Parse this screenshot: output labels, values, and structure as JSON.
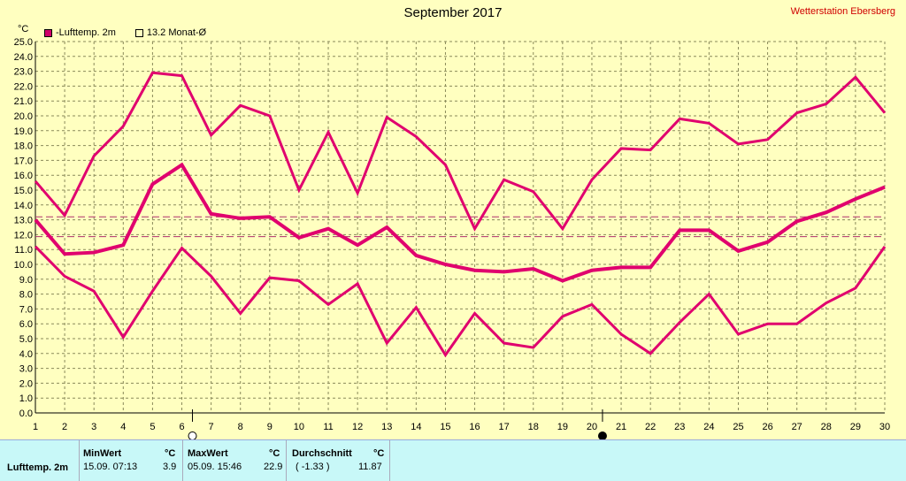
{
  "title": "September 2017",
  "station": "Wetterstation Ebersberg",
  "legend": {
    "series_label": "-Lufttemp. 2m",
    "avg_label": "13.2 Monat-Ø"
  },
  "chart_data": {
    "type": "line",
    "ylabel": "°C",
    "ylim": [
      0,
      25
    ],
    "ytick_step": 1,
    "x": [
      1,
      2,
      3,
      4,
      5,
      6,
      7,
      8,
      9,
      10,
      11,
      12,
      13,
      14,
      15,
      16,
      17,
      18,
      19,
      20,
      21,
      22,
      23,
      24,
      25,
      26,
      27,
      28,
      29,
      30
    ],
    "grid": true,
    "series": [
      {
        "key": "max",
        "values": [
          15.6,
          13.3,
          17.3,
          19.3,
          22.9,
          22.7,
          18.7,
          20.7,
          20.0,
          15.0,
          18.9,
          14.8,
          19.9,
          18.6,
          16.7,
          12.4,
          15.7,
          14.9,
          12.4,
          15.7,
          17.8,
          17.7,
          19.8,
          19.5,
          18.1,
          18.4,
          20.2,
          20.8,
          22.6,
          20.2
        ]
      },
      {
        "key": "avg",
        "values": [
          13.0,
          10.7,
          10.8,
          11.3,
          15.4,
          16.7,
          13.4,
          13.1,
          13.2,
          11.8,
          12.4,
          11.3,
          12.5,
          10.6,
          10.0,
          9.6,
          9.5,
          9.7,
          8.9,
          9.6,
          9.8,
          9.8,
          12.3,
          12.3,
          10.9,
          11.5,
          12.9,
          13.5,
          14.4,
          15.2
        ]
      },
      {
        "key": "min",
        "values": [
          11.2,
          9.2,
          8.2,
          5.1,
          8.2,
          11.1,
          9.2,
          6.7,
          9.1,
          8.9,
          7.3,
          8.7,
          4.7,
          7.1,
          3.9,
          6.7,
          4.7,
          4.4,
          6.5,
          7.3,
          5.3,
          4.0,
          6.1,
          8.0,
          5.3,
          6.0,
          6.0,
          7.4,
          8.4,
          11.2
        ]
      }
    ],
    "reference_lines": [
      13.2,
      11.87
    ],
    "moon_phases": [
      {
        "day": 6,
        "phase": "full-moon"
      },
      {
        "day": 20,
        "phase": "new-moon"
      }
    ],
    "colors": {
      "line": "#e0006e",
      "grid": "#8a8a5a",
      "ref": "#b0306e"
    }
  },
  "stats": {
    "row_label": "Lufttemp. 2m",
    "min": {
      "header": "MinWert",
      "unit": "°C",
      "when": "15.09.  07:13",
      "value": "3.9"
    },
    "max": {
      "header": "MaxWert",
      "unit": "°C",
      "when": "05.09.  15:46",
      "value": "22.9"
    },
    "avg": {
      "header": "Durchschnitt",
      "unit": "°C",
      "dev": "( -1.33 )",
      "value": "11.87"
    }
  }
}
